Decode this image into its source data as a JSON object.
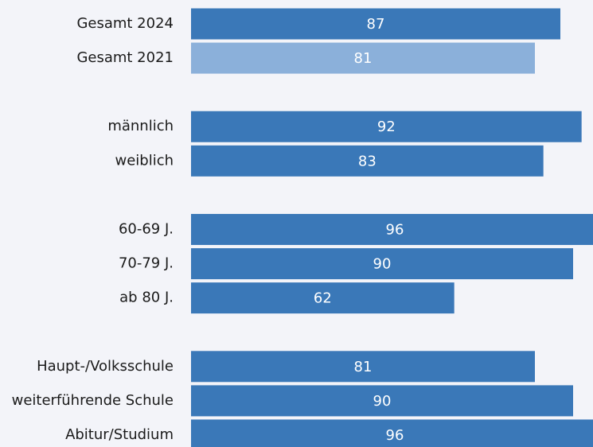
{
  "chart_data": {
    "type": "bar",
    "orientation": "horizontal",
    "categories": [
      "Gesamt 2024",
      "Gesamt 2021",
      null,
      "männlich",
      "weiblich",
      null,
      "60-69 J.",
      "70-79 J.",
      "ab 80 J.",
      null,
      "Haupt-/Volksschule",
      "weiterführende Schule",
      "Abitur/Studium"
    ],
    "values": [
      87,
      81,
      null,
      92,
      83,
      null,
      96,
      90,
      62,
      null,
      81,
      90,
      96
    ],
    "colors": [
      "#3a78b8",
      "#8bb0da",
      null,
      "#3a78b8",
      "#3a78b8",
      null,
      "#3a78b8",
      "#3a78b8",
      "#3a78b8",
      null,
      "#3a78b8",
      "#3a78b8",
      "#3a78b8"
    ],
    "xlim": [
      0,
      96
    ]
  }
}
